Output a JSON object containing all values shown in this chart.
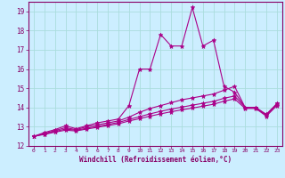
{
  "title": "",
  "xlabel": "Windchill (Refroidissement éolien,°C)",
  "ylabel": "",
  "bg_color": "#cceeff",
  "grid_color": "#aadddd",
  "line_color": "#aa0088",
  "xlim": [
    -0.5,
    23.5
  ],
  "ylim": [
    12,
    19.5
  ],
  "yticks": [
    12,
    13,
    14,
    15,
    16,
    17,
    18,
    19
  ],
  "xticks": [
    0,
    1,
    2,
    3,
    4,
    5,
    6,
    7,
    8,
    9,
    10,
    11,
    12,
    13,
    14,
    15,
    16,
    17,
    18,
    19,
    20,
    21,
    22,
    23
  ],
  "series": [
    {
      "x": [
        0,
        1,
        2,
        3,
        4,
        5,
        6,
        7,
        8,
        9,
        10,
        11,
        12,
        13,
        14,
        15,
        16,
        17,
        18,
        19,
        20,
        21,
        22,
        23
      ],
      "y": [
        12.5,
        12.7,
        12.85,
        13.05,
        12.9,
        13.05,
        13.2,
        13.3,
        13.4,
        14.1,
        16.0,
        16.0,
        17.8,
        17.2,
        17.2,
        19.2,
        17.2,
        17.5,
        15.1,
        14.8,
        14.0,
        14.0,
        13.6,
        14.2
      ]
    },
    {
      "x": [
        0,
        1,
        2,
        3,
        4,
        5,
        6,
        7,
        8,
        9,
        10,
        11,
        12,
        13,
        14,
        15,
        16,
        17,
        18,
        19,
        20,
        21,
        22,
        23
      ],
      "y": [
        12.5,
        12.65,
        12.8,
        12.95,
        12.85,
        13.0,
        13.1,
        13.2,
        13.3,
        13.5,
        13.75,
        13.95,
        14.1,
        14.25,
        14.4,
        14.5,
        14.6,
        14.7,
        14.9,
        15.1,
        14.0,
        14.0,
        13.65,
        14.2
      ]
    },
    {
      "x": [
        0,
        1,
        2,
        3,
        4,
        5,
        6,
        7,
        8,
        9,
        10,
        11,
        12,
        13,
        14,
        15,
        16,
        17,
        18,
        19,
        20,
        21,
        22,
        23
      ],
      "y": [
        12.5,
        12.62,
        12.75,
        12.88,
        12.82,
        12.92,
        13.02,
        13.12,
        13.22,
        13.38,
        13.52,
        13.67,
        13.8,
        13.92,
        14.02,
        14.12,
        14.22,
        14.32,
        14.48,
        14.6,
        14.0,
        14.0,
        13.6,
        14.15
      ]
    },
    {
      "x": [
        0,
        1,
        2,
        3,
        4,
        5,
        6,
        7,
        8,
        9,
        10,
        11,
        12,
        13,
        14,
        15,
        16,
        17,
        18,
        19,
        20,
        21,
        22,
        23
      ],
      "y": [
        12.5,
        12.6,
        12.72,
        12.82,
        12.78,
        12.88,
        12.97,
        13.06,
        13.15,
        13.3,
        13.42,
        13.55,
        13.67,
        13.78,
        13.88,
        13.97,
        14.07,
        14.17,
        14.33,
        14.45,
        13.95,
        13.95,
        13.55,
        14.1
      ]
    }
  ]
}
